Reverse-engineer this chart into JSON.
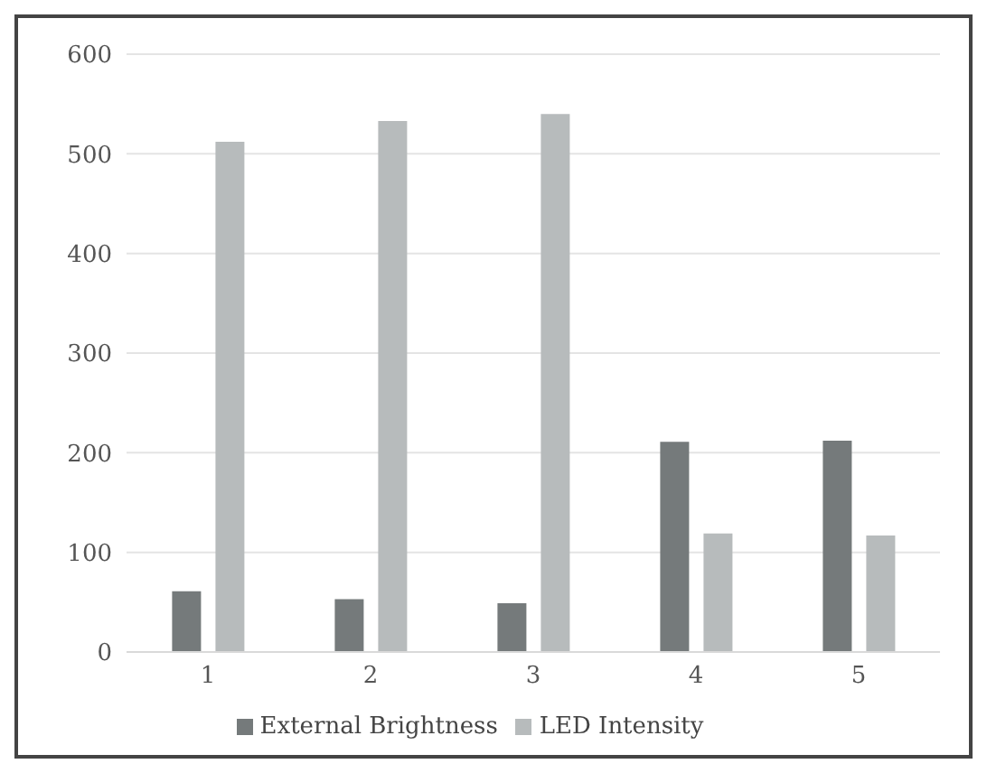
{
  "chart_data": {
    "type": "bar",
    "categories": [
      "1",
      "2",
      "3",
      "4",
      "5"
    ],
    "series": [
      {
        "name": "External Brightness",
        "color": "#757a7b",
        "values": [
          61,
          53,
          49,
          211,
          212
        ]
      },
      {
        "name": "LED Intensity",
        "color": "#b7bbbc",
        "values": [
          512,
          533,
          540,
          119,
          117
        ]
      }
    ],
    "ylim": [
      0,
      600
    ],
    "yticks": [
      0,
      100,
      200,
      300,
      400,
      500,
      600
    ],
    "grid": "y",
    "legend": "bottom"
  }
}
